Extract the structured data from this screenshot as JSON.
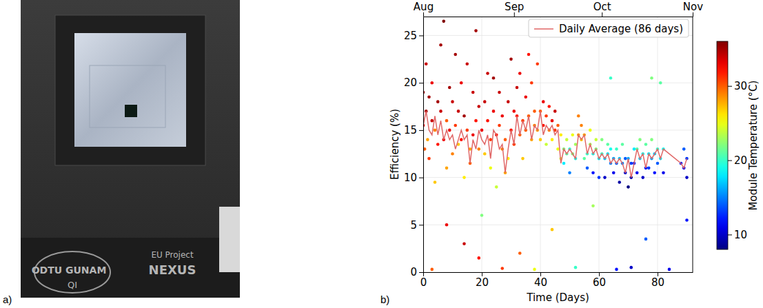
{
  "photo": {
    "panel_label": "a)",
    "texts": [
      "ODTU GUNAM",
      "QI",
      "EU Project",
      "NEXUS"
    ]
  },
  "chart_data": {
    "type": "scatter",
    "panel_label": "b)",
    "x_label": "Time (Days)",
    "y_label": "Efficiency (%)",
    "xlim": [
      0,
      92
    ],
    "xticks": [
      0,
      20,
      40,
      60,
      80
    ],
    "x2lim": [
      0,
      92
    ],
    "x2ticks": [
      {
        "value": 0,
        "label": "Aug"
      },
      {
        "value": 31,
        "label": "Sep"
      },
      {
        "value": 61,
        "label": "Oct"
      },
      {
        "value": 92,
        "label": "Nov"
      }
    ],
    "ylim": [
      0,
      27
    ],
    "yticks": [
      0,
      5,
      10,
      15,
      20,
      25
    ],
    "grid": true,
    "legend": "upper right",
    "colorbar": {
      "label": "Module Temperature (°C)",
      "range": [
        8,
        36
      ],
      "ticks": [
        10,
        20,
        30
      ]
    },
    "series": [
      {
        "type": "scatter",
        "marker": "circle",
        "x": [
          0,
          0,
          0.5,
          1,
          1,
          1.5,
          2,
          2,
          3,
          3,
          4,
          4,
          5,
          5,
          6,
          6,
          7,
          7,
          8,
          8,
          9,
          9,
          10,
          10,
          11,
          11,
          12,
          12,
          13,
          13,
          14,
          14,
          15,
          15,
          16,
          16,
          17,
          17,
          18,
          18,
          19,
          19,
          20,
          20,
          21,
          21,
          22,
          22,
          23,
          23,
          24,
          24,
          25,
          25,
          26,
          26,
          27,
          27,
          28,
          28,
          29,
          29,
          30,
          30,
          31,
          31,
          32,
          32,
          33,
          33,
          34,
          34,
          35,
          35,
          36,
          36,
          37,
          37,
          38,
          38,
          39,
          39,
          40,
          40,
          41,
          41,
          42,
          42,
          43,
          43,
          44,
          44,
          45,
          45,
          46,
          46,
          47,
          47,
          3,
          8,
          14,
          19,
          27,
          33,
          38,
          44,
          52,
          58,
          66,
          71,
          76,
          84,
          90,
          48,
          48,
          49,
          49,
          50,
          50,
          51,
          51,
          52,
          52,
          53,
          53,
          54,
          54,
          55,
          55,
          56,
          56,
          57,
          57,
          58,
          58,
          59,
          59,
          60,
          60,
          61,
          61,
          62,
          62,
          63,
          63,
          64,
          64,
          65,
          65,
          66,
          66,
          67,
          67,
          68,
          68,
          69,
          69,
          70,
          70,
          71,
          71,
          72,
          72,
          73,
          73,
          74,
          74,
          75,
          75,
          76,
          76,
          77,
          77,
          78,
          78,
          79,
          79,
          80,
          80,
          81,
          81,
          82,
          82,
          88,
          89,
          89,
          90,
          90,
          64,
          78
        ],
        "values": [
          15.5,
          19,
          13,
          22,
          17,
          14,
          18.5,
          12,
          16,
          20,
          15,
          9.5,
          18,
          13.5,
          17,
          24,
          26.5,
          14,
          16,
          11,
          19.5,
          15,
          12.5,
          18,
          23,
          15.5,
          13.5,
          17,
          20,
          14,
          16.5,
          10,
          15,
          22,
          11.5,
          13,
          19,
          14.5,
          16,
          25.5,
          13,
          17.5,
          15,
          6,
          18,
          12.5,
          16,
          21,
          14,
          11,
          17,
          20.5,
          14.5,
          9,
          15.5,
          19,
          13,
          16.5,
          10.5,
          14,
          18,
          12,
          15,
          22.5,
          13.5,
          17,
          16.5,
          19.5,
          14.5,
          21,
          16,
          12,
          15,
          18.5,
          16.5,
          23,
          14,
          20,
          15.5,
          17,
          15,
          22,
          17,
          14,
          15.5,
          18,
          16.5,
          13.5,
          15,
          17.5,
          16,
          14,
          15,
          17,
          15.5,
          13,
          12,
          14.5,
          0.3,
          5,
          3,
          1.5,
          0.4,
          2,
          0.3,
          4.5,
          0.5,
          7,
          0.3,
          0.5,
          3.5,
          0.3,
          5.5,
          13,
          11.5,
          12.5,
          14,
          13,
          10.5,
          12.5,
          14.5,
          12,
          13.5,
          14.5,
          16.5,
          14,
          15.5,
          14.5,
          12,
          12.5,
          11,
          13.5,
          15,
          12.5,
          10.5,
          13,
          14,
          12,
          10,
          12.5,
          14,
          12,
          10,
          12.5,
          13.5,
          11.5,
          13,
          12,
          10.5,
          11.5,
          13,
          12,
          9.5,
          11.5,
          13.5,
          10.5,
          12,
          12,
          9,
          10,
          11.5,
          11.5,
          13,
          13,
          10.5,
          12,
          14,
          12.5,
          10,
          11,
          13.5,
          12.5,
          11,
          12,
          14,
          12.5,
          10.5,
          13,
          11.5,
          12,
          20,
          13,
          10.5,
          11.5,
          11,
          13,
          12,
          10,
          20.5,
          20.5
        ],
        "temperature": [
          33,
          35,
          30,
          34,
          35,
          28,
          35,
          31,
          34,
          33,
          29,
          27,
          35,
          32,
          34,
          35,
          36,
          33,
          30,
          28,
          35,
          33,
          29,
          34,
          35,
          31,
          27,
          34,
          33,
          32,
          35,
          26,
          31,
          34,
          30,
          28,
          34,
          33,
          32,
          35,
          29,
          34,
          33,
          22,
          34,
          27,
          32,
          34,
          31,
          25,
          33,
          35,
          32,
          24,
          31,
          34,
          29,
          33,
          28,
          30,
          34,
          26,
          32,
          35,
          31,
          33,
          32,
          34,
          30,
          33,
          31,
          27,
          30,
          33,
          30,
          32,
          28,
          31,
          29,
          30,
          28,
          31,
          30,
          27,
          32,
          33,
          31,
          24,
          29,
          32,
          33,
          26,
          31,
          34,
          30,
          25,
          24,
          26,
          30,
          33,
          34,
          32,
          31,
          30,
          25,
          27,
          20,
          23,
          12,
          10,
          14,
          11,
          12,
          22,
          18,
          21,
          24,
          20,
          15,
          22,
          25,
          19,
          23,
          28,
          29,
          27,
          29,
          28,
          21,
          20,
          14,
          23,
          25,
          19,
          12,
          22,
          24,
          18,
          13,
          20,
          22,
          17,
          10,
          18,
          21,
          15,
          19,
          16,
          11,
          14,
          20,
          17,
          9,
          15,
          21,
          10,
          14,
          16,
          8,
          9,
          13,
          12,
          18,
          21,
          11,
          17,
          22,
          19,
          10,
          12,
          21,
          18,
          13,
          16,
          22,
          17,
          12,
          20,
          14,
          18,
          21,
          19,
          11,
          12,
          11,
          14,
          13,
          10,
          20,
          22
        ]
      },
      {
        "type": "line",
        "name": "Daily Average (86 days)",
        "color": "#e06666",
        "line_style": "solid",
        "x": [
          0,
          1,
          2,
          3,
          4,
          5,
          6,
          7,
          8,
          9,
          10,
          11,
          12,
          13,
          14,
          15,
          16,
          17,
          18,
          19,
          20,
          21,
          22,
          23,
          24,
          25,
          26,
          27,
          28,
          29,
          30,
          31,
          32,
          33,
          34,
          35,
          36,
          37,
          38,
          39,
          40,
          41,
          42,
          43,
          44,
          45,
          46,
          47,
          48,
          49,
          50,
          51,
          52,
          53,
          54,
          55,
          56,
          57,
          58,
          59,
          60,
          61,
          62,
          63,
          64,
          65,
          66,
          67,
          68,
          69,
          70,
          71,
          72,
          73,
          74,
          75,
          76,
          77,
          78,
          79,
          80,
          81,
          82,
          88,
          89,
          90
        ],
        "values": [
          15.5,
          17,
          15,
          14.5,
          16.5,
          14.5,
          16,
          14,
          15,
          14,
          14.5,
          13,
          14,
          15,
          14,
          14.5,
          11.5,
          14,
          13,
          15,
          14,
          13.5,
          14.5,
          12,
          15,
          14.5,
          13,
          13.5,
          10.5,
          13,
          15,
          13.5,
          16.5,
          14.5,
          16,
          15,
          16.5,
          14,
          15.5,
          15,
          17,
          14.5,
          15.5,
          15,
          15.5,
          14.5,
          15,
          11.5,
          13,
          12.5,
          13,
          12.5,
          12,
          14.5,
          14,
          14.5,
          12.5,
          13.5,
          12.5,
          13,
          12,
          12.5,
          12,
          12.5,
          11.5,
          12,
          11.5,
          12,
          11.5,
          10.5,
          12,
          10,
          11.5,
          13,
          12,
          12.5,
          11,
          12.5,
          12,
          12.5,
          13,
          12,
          13,
          11.5,
          11,
          12
        ]
      }
    ]
  }
}
